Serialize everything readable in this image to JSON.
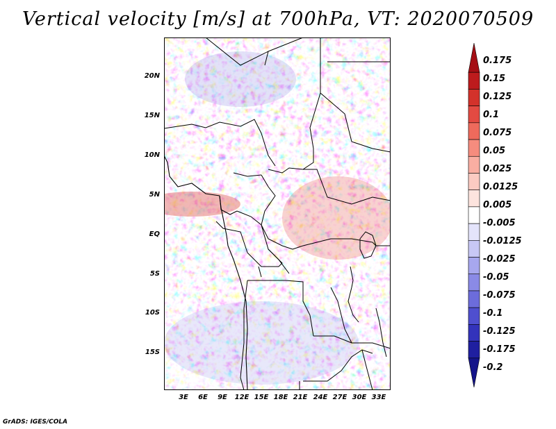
{
  "title": "Vertical velocity [m/s] at 700hPa, VT: 2020070509",
  "credit": "GrADS: IGES/COLA",
  "lat_labels": [
    "20N",
    "15N",
    "10N",
    "5N",
    "EQ",
    "5S",
    "10S",
    "15S"
  ],
  "lon_labels": [
    "3E",
    "6E",
    "9E",
    "12E",
    "15E",
    "18E",
    "21E",
    "24E",
    "27E",
    "30E",
    "33E"
  ],
  "colorbar": {
    "labels": [
      "0.175",
      "0.15",
      "0.125",
      "0.1",
      "0.075",
      "0.05",
      "0.025",
      "0.0125",
      "0.005",
      "-0.005",
      "-0.0125",
      "-0.025",
      "-0.05",
      "-0.075",
      "-0.1",
      "-0.125",
      "-0.175",
      "-0.2"
    ],
    "colors": [
      "#a50f15",
      "#bd1b1d",
      "#d3322b",
      "#e34a42",
      "#ee6a5c",
      "#f58c7e",
      "#f9aea2",
      "#fbcbc2",
      "#fde4de",
      "#ffffff",
      "#e4e4fb",
      "#c8c8f5",
      "#a7a7ee",
      "#8a8ae6",
      "#6c6cdb",
      "#4f4fcf",
      "#3333bb",
      "#1f1fa0",
      "#14148a"
    ]
  }
}
